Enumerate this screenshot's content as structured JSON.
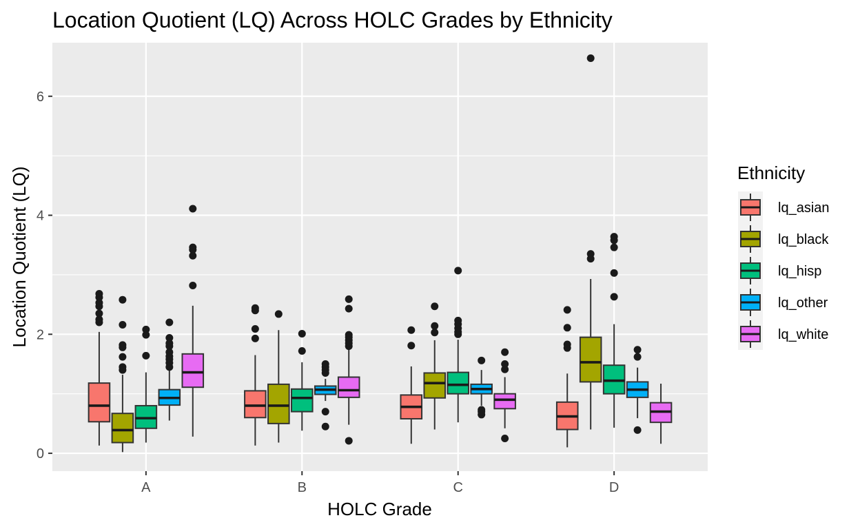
{
  "chart_data": {
    "type": "boxplot",
    "title": "Location Quotient (LQ) Across HOLC Grades by Ethnicity",
    "xlabel": "HOLC Grade",
    "ylabel": "Location Quotient (LQ)",
    "categories": [
      "A",
      "B",
      "C",
      "D"
    ],
    "ylim": [
      -0.3,
      6.9
    ],
    "yticks": [
      0,
      2,
      4,
      6
    ],
    "grid": true,
    "legend": {
      "title": "Ethnicity",
      "position": "right"
    },
    "series": [
      {
        "name": "lq_asian",
        "color": "#F8766D",
        "boxes": [
          {
            "lower_whisker": 0.13,
            "q1": 0.53,
            "median": 0.8,
            "q3": 1.18,
            "upper_whisker": 2.04,
            "outliers": [
              2.2,
              2.25,
              2.35,
              2.47,
              2.53,
              2.62,
              2.68
            ]
          },
          {
            "lower_whisker": 0.13,
            "q1": 0.6,
            "median": 0.8,
            "q3": 1.05,
            "upper_whisker": 1.65,
            "outliers": [
              1.93,
              2.09,
              2.4,
              2.44
            ]
          },
          {
            "lower_whisker": 0.16,
            "q1": 0.58,
            "median": 0.78,
            "q3": 0.98,
            "upper_whisker": 1.46,
            "outliers": [
              1.81,
              2.07
            ]
          },
          {
            "lower_whisker": 0.1,
            "q1": 0.4,
            "median": 0.62,
            "q3": 0.86,
            "upper_whisker": 1.34,
            "outliers": [
              1.77,
              1.83,
              2.11,
              2.41
            ]
          }
        ]
      },
      {
        "name": "lq_black",
        "color": "#A3A500",
        "boxes": [
          {
            "lower_whisker": 0.02,
            "q1": 0.18,
            "median": 0.39,
            "q3": 0.67,
            "upper_whisker": 1.32,
            "outliers": [
              1.4,
              1.45,
              1.62,
              1.78,
              1.82,
              2.16,
              2.58
            ]
          },
          {
            "lower_whisker": 0.18,
            "q1": 0.5,
            "median": 0.8,
            "q3": 1.16,
            "upper_whisker": 2.07,
            "outliers": [
              2.34
            ]
          },
          {
            "lower_whisker": 0.4,
            "q1": 0.93,
            "median": 1.18,
            "q3": 1.35,
            "upper_whisker": 1.9,
            "outliers": [
              2.03,
              2.14,
              2.47
            ]
          },
          {
            "lower_whisker": 0.4,
            "q1": 1.2,
            "median": 1.53,
            "q3": 1.95,
            "upper_whisker": 2.93,
            "outliers": [
              3.27,
              3.35,
              6.64
            ]
          }
        ]
      },
      {
        "name": "lq_hisp",
        "color": "#00BF7D",
        "boxes": [
          {
            "lower_whisker": 0.18,
            "q1": 0.42,
            "median": 0.59,
            "q3": 0.8,
            "upper_whisker": 1.36,
            "outliers": [
              1.64,
              1.99,
              2.08
            ]
          },
          {
            "lower_whisker": 0.38,
            "q1": 0.7,
            "median": 0.93,
            "q3": 1.08,
            "upper_whisker": 1.53,
            "outliers": [
              1.72,
              2.01
            ]
          },
          {
            "lower_whisker": 0.52,
            "q1": 1.0,
            "median": 1.15,
            "q3": 1.36,
            "upper_whisker": 1.91,
            "outliers": [
              2.0,
              2.04,
              2.1,
              2.17,
              2.23,
              3.07
            ]
          },
          {
            "lower_whisker": 0.43,
            "q1": 1.0,
            "median": 1.22,
            "q3": 1.48,
            "upper_whisker": 2.17,
            "outliers": [
              2.63,
              3.03,
              3.46,
              3.58,
              3.64
            ]
          }
        ]
      },
      {
        "name": "lq_other",
        "color": "#00B0F6",
        "boxes": [
          {
            "lower_whisker": 0.55,
            "q1": 0.81,
            "median": 0.93,
            "q3": 1.07,
            "upper_whisker": 1.4,
            "outliers": [
              1.45,
              1.52,
              1.58,
              1.63,
              1.7,
              1.8,
              1.85,
              1.94,
              2.2
            ]
          },
          {
            "lower_whisker": 0.88,
            "q1": 0.99,
            "median": 1.07,
            "q3": 1.13,
            "upper_whisker": 1.25,
            "outliers": [
              0.45,
              0.7,
              1.35,
              1.4,
              1.45,
              1.5
            ]
          },
          {
            "lower_whisker": 0.8,
            "q1": 1.0,
            "median": 1.08,
            "q3": 1.16,
            "upper_whisker": 1.4,
            "outliers": [
              0.65,
              0.7,
              0.73,
              1.56
            ]
          },
          {
            "lower_whisker": 0.59,
            "q1": 0.94,
            "median": 1.07,
            "q3": 1.2,
            "upper_whisker": 1.44,
            "outliers": [
              0.39,
              1.62,
              1.74
            ]
          }
        ]
      },
      {
        "name": "lq_white",
        "color": "#E76BF3",
        "boxes": [
          {
            "lower_whisker": 0.28,
            "q1": 1.11,
            "median": 1.36,
            "q3": 1.67,
            "upper_whisker": 2.48,
            "outliers": [
              2.82,
              3.32,
              3.42,
              3.46,
              4.11
            ]
          },
          {
            "lower_whisker": 0.48,
            "q1": 0.94,
            "median": 1.06,
            "q3": 1.28,
            "upper_whisker": 1.74,
            "outliers": [
              0.21,
              1.8,
              1.85,
              1.9,
              1.95,
              1.99,
              2.43,
              2.59
            ]
          },
          {
            "lower_whisker": 0.42,
            "q1": 0.75,
            "median": 0.9,
            "q3": 1.0,
            "upper_whisker": 1.28,
            "outliers": [
              0.25,
              1.41,
              1.5,
              1.7
            ]
          },
          {
            "lower_whisker": 0.16,
            "q1": 0.52,
            "median": 0.7,
            "q3": 0.85,
            "upper_whisker": 1.17,
            "outliers": []
          }
        ]
      }
    ]
  }
}
